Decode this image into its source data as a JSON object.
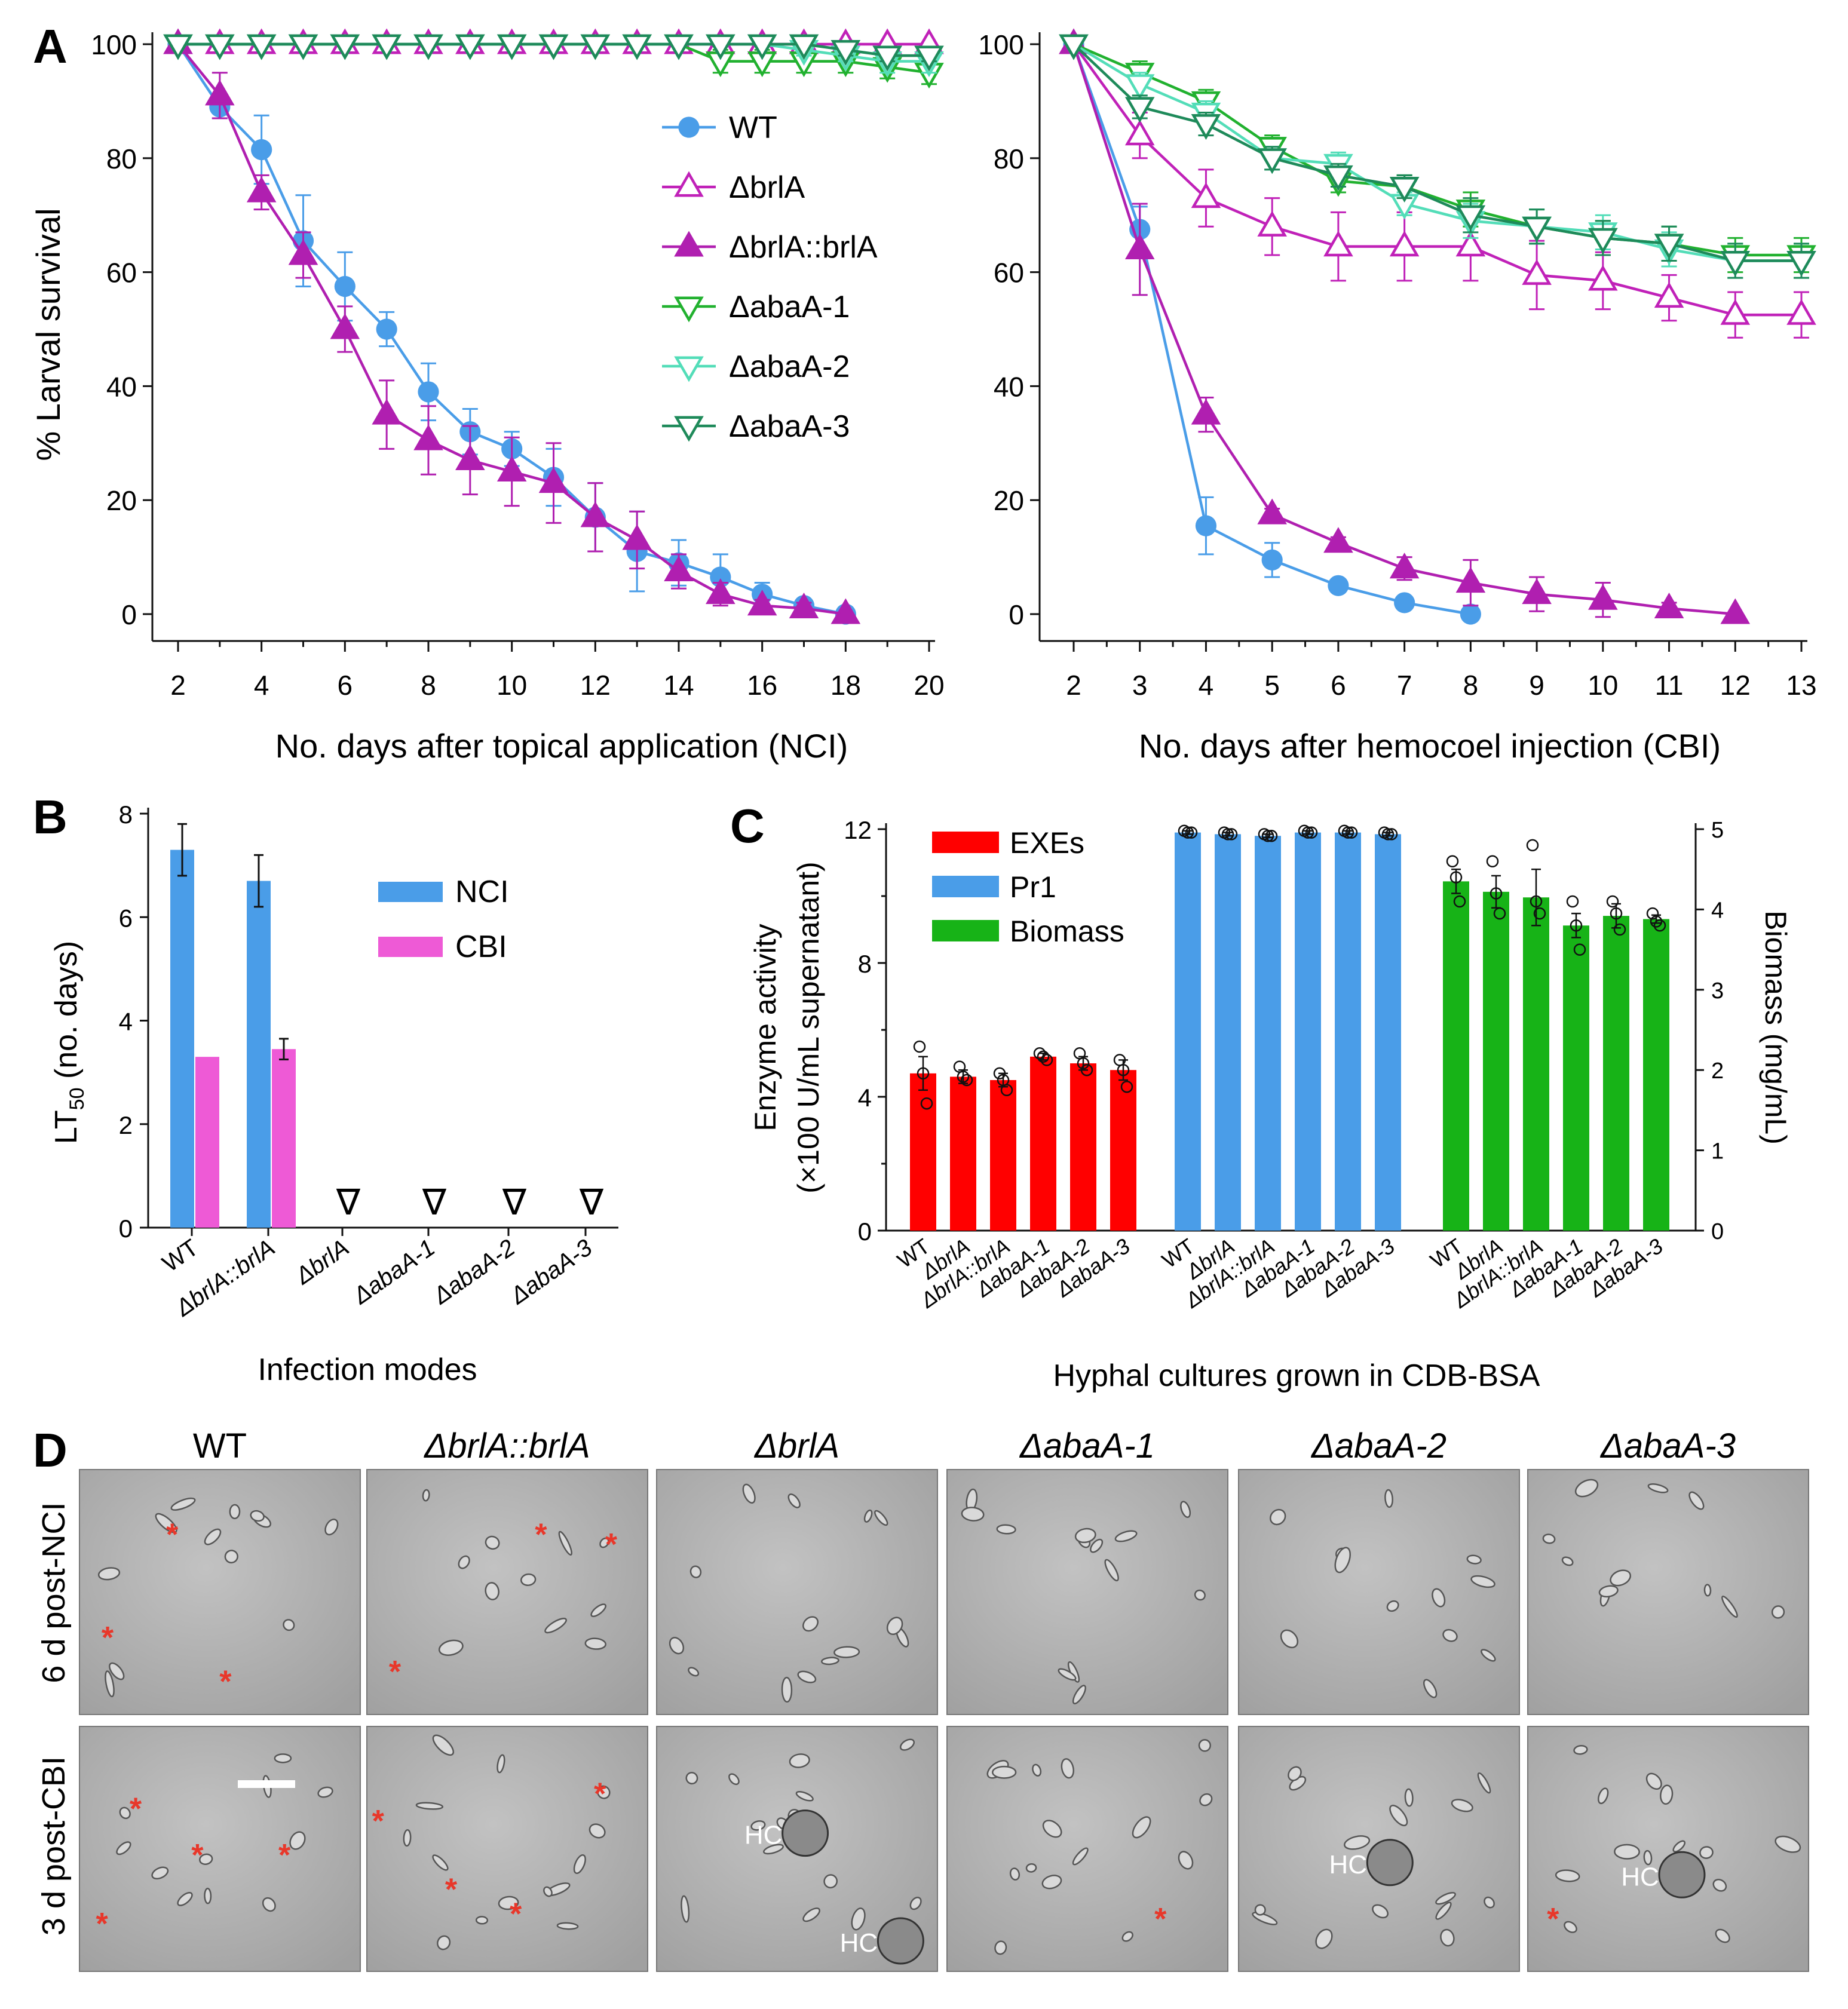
{
  "panels": {
    "A": "A",
    "B": "B",
    "C": "C",
    "D": "D"
  },
  "colors": {
    "wt": "#4a9de8",
    "brlA": "#c021b8",
    "comp": "#b01fb0",
    "abaA1": "#21b12f",
    "abaA2": "#53ddb8",
    "abaA3": "#1e8a5a",
    "exes": "#ff0000",
    "pr1": "#4a9de8",
    "biomass": "#17b317",
    "nci": "#4a9de8",
    "cbi": "#ee5ad6",
    "asterisk": "#e8372a"
  },
  "chart_data": [
    {
      "id": "A-left",
      "type": "line",
      "title": "",
      "xlabel": "No. days after topical application (NCI)",
      "ylabel": "% Larval survival",
      "xlim": [
        2,
        20
      ],
      "ylim": [
        0,
        100
      ],
      "xticks": [
        2,
        4,
        6,
        8,
        10,
        12,
        14,
        16,
        18,
        20
      ],
      "yticks": [
        0,
        20,
        40,
        60,
        80,
        100
      ],
      "legend": [
        "WT",
        "ΔbrlA",
        "ΔbrlA::brlA",
        "ΔabaA-1",
        "ΔabaA-2",
        "ΔabaA-3"
      ],
      "series": [
        {
          "name": "WT",
          "key": "wt",
          "marker": "circle",
          "x": [
            2,
            3,
            4,
            5,
            6,
            7,
            8,
            9,
            10,
            11,
            12,
            13,
            14,
            15,
            16,
            17,
            18
          ],
          "values": [
            100,
            89,
            81.5,
            65.5,
            57.5,
            50,
            39,
            32,
            29,
            24,
            17,
            11,
            9,
            6.5,
            3.5,
            1.5,
            0
          ],
          "err": [
            0,
            2,
            6,
            8,
            6,
            3,
            5,
            4,
            3,
            5,
            6,
            7,
            4,
            4,
            2,
            1,
            0
          ]
        },
        {
          "name": "ΔbrlA",
          "key": "brlA",
          "marker": "tri-up-open",
          "x": [
            2,
            3,
            4,
            5,
            6,
            7,
            8,
            9,
            10,
            11,
            12,
            13,
            14,
            15,
            16,
            17,
            18,
            19,
            20
          ],
          "values": [
            100,
            100,
            100,
            100,
            100,
            100,
            100,
            100,
            100,
            100,
            100,
            100,
            100,
            100,
            100,
            100,
            100,
            100,
            100
          ],
          "err": [
            0,
            0,
            0,
            0,
            0,
            0,
            0,
            0,
            0,
            0,
            0,
            0,
            0,
            0,
            0,
            0,
            0,
            0,
            0
          ]
        },
        {
          "name": "ΔbrlA::brlA",
          "key": "comp",
          "marker": "tri-up-filled",
          "x": [
            2,
            3,
            4,
            5,
            6,
            7,
            8,
            9,
            10,
            11,
            12,
            13,
            14,
            15,
            16,
            17,
            18
          ],
          "values": [
            100,
            91,
            74,
            63,
            50,
            35,
            30.5,
            27,
            25,
            23,
            17,
            13,
            7.5,
            3.5,
            1.5,
            1,
            0
          ],
          "err": [
            0,
            4,
            3,
            4,
            4,
            6,
            6,
            6,
            6,
            7,
            6,
            5,
            3,
            2,
            1,
            1,
            0
          ]
        },
        {
          "name": "ΔabaA-1",
          "key": "abaA1",
          "marker": "tri-down-open",
          "x": [
            2,
            3,
            4,
            5,
            6,
            7,
            8,
            9,
            10,
            11,
            12,
            13,
            14,
            15,
            16,
            17,
            18,
            19,
            20
          ],
          "values": [
            100,
            100,
            100,
            100,
            100,
            100,
            100,
            100,
            100,
            100,
            100,
            100,
            100,
            97,
            97,
            97,
            97,
            96,
            95
          ],
          "err": [
            0,
            0,
            0,
            0,
            0,
            0,
            0,
            0,
            0,
            0,
            0,
            0,
            0,
            2,
            2,
            2,
            2,
            2,
            2
          ]
        },
        {
          "name": "ΔabaA-2",
          "key": "abaA2",
          "marker": "tri-down-open",
          "x": [
            2,
            3,
            4,
            5,
            6,
            7,
            8,
            9,
            10,
            11,
            12,
            13,
            14,
            15,
            16,
            17,
            18,
            19,
            20
          ],
          "values": [
            100,
            100,
            100,
            100,
            100,
            100,
            100,
            100,
            100,
            100,
            100,
            100,
            100,
            100,
            100,
            99,
            98,
            97,
            97
          ],
          "err": [
            0,
            0,
            0,
            0,
            0,
            0,
            0,
            0,
            0,
            0,
            0,
            0,
            0,
            0,
            0,
            1,
            1,
            2,
            2
          ]
        },
        {
          "name": "ΔabaA-3",
          "key": "abaA3",
          "marker": "tri-down-open",
          "x": [
            2,
            3,
            4,
            5,
            6,
            7,
            8,
            9,
            10,
            11,
            12,
            13,
            14,
            15,
            16,
            17,
            18,
            19,
            20
          ],
          "values": [
            100,
            100,
            100,
            100,
            100,
            100,
            100,
            100,
            100,
            100,
            100,
            100,
            100,
            100,
            100,
            100,
            99,
            98,
            98
          ],
          "err": [
            0,
            0,
            0,
            0,
            0,
            0,
            0,
            0,
            0,
            0,
            0,
            0,
            0,
            0,
            0,
            0,
            1,
            1,
            1
          ]
        }
      ]
    },
    {
      "id": "A-right",
      "type": "line",
      "title": "",
      "xlabel": "No. days after hemocoel injection (CBI)",
      "ylabel": "",
      "xlim": [
        2,
        13
      ],
      "ylim": [
        0,
        100
      ],
      "xticks": [
        2,
        3,
        4,
        5,
        6,
        7,
        8,
        9,
        10,
        11,
        12,
        13
      ],
      "yticks": [
        0,
        20,
        40,
        60,
        80,
        100
      ],
      "series": [
        {
          "name": "WT",
          "key": "wt",
          "marker": "circle",
          "x": [
            2,
            3,
            4,
            5,
            6,
            7,
            8
          ],
          "values": [
            100,
            67.5,
            15.5,
            9.5,
            5,
            2,
            0
          ],
          "err": [
            0,
            4,
            5,
            3,
            1,
            1,
            0
          ]
        },
        {
          "name": "ΔbrlA",
          "key": "brlA",
          "marker": "tri-up-open",
          "x": [
            2,
            3,
            4,
            5,
            6,
            7,
            8,
            9,
            10,
            11,
            12,
            13
          ],
          "values": [
            100,
            84,
            73,
            68,
            64.5,
            64.5,
            64.5,
            59.5,
            58.5,
            55.5,
            52.5,
            52.5
          ],
          "err": [
            0,
            4,
            5,
            5,
            6,
            6,
            6,
            6,
            5,
            4,
            4,
            4
          ]
        },
        {
          "name": "ΔbrlA::brlA",
          "key": "comp",
          "marker": "tri-up-filled",
          "x": [
            2,
            3,
            4,
            5,
            6,
            7,
            8,
            9,
            10,
            11,
            12
          ],
          "values": [
            100,
            64,
            35,
            17.5,
            12.5,
            8,
            5.5,
            3.5,
            2.5,
            1,
            0
          ],
          "err": [
            0,
            8,
            3,
            1,
            1,
            2,
            4,
            3,
            3,
            1,
            0
          ]
        },
        {
          "name": "ΔabaA-1",
          "key": "abaA1",
          "marker": "tri-down-open",
          "x": [
            2,
            3,
            4,
            5,
            6,
            7,
            8,
            9,
            10,
            11,
            12,
            13
          ],
          "values": [
            100,
            95,
            90,
            82,
            76,
            75,
            71,
            68,
            66,
            65,
            63,
            63
          ],
          "err": [
            0,
            2,
            2,
            2,
            2,
            2,
            3,
            3,
            3,
            3,
            3,
            3
          ]
        },
        {
          "name": "ΔabaA-2",
          "key": "abaA2",
          "marker": "tri-down-open",
          "x": [
            2,
            3,
            4,
            5,
            6,
            7,
            8,
            9,
            10,
            11,
            12,
            13
          ],
          "values": [
            100,
            93,
            88,
            80,
            79,
            72,
            69,
            68,
            67,
            64,
            62,
            62
          ],
          "err": [
            0,
            2,
            2,
            2,
            2,
            2,
            3,
            3,
            3,
            3,
            3,
            3
          ]
        },
        {
          "name": "ΔabaA-3",
          "key": "abaA3",
          "marker": "tri-down-open",
          "x": [
            2,
            3,
            4,
            5,
            6,
            7,
            8,
            9,
            10,
            11,
            12,
            13
          ],
          "values": [
            100,
            89,
            86,
            80,
            77,
            75,
            70,
            68,
            66,
            65,
            62,
            62
          ],
          "err": [
            0,
            2,
            2,
            2,
            2,
            2,
            3,
            3,
            3,
            3,
            3,
            3
          ]
        }
      ]
    },
    {
      "id": "B",
      "type": "bar",
      "xlabel": "Infection modes",
      "ylabel_main": "LT",
      "ylabel_sub": "50",
      "ylabel_rest": " (no. days)",
      "ylim": [
        0,
        8
      ],
      "yticks": [
        0,
        2,
        4,
        6,
        8
      ],
      "categories": [
        "WT",
        "ΔbrlA::brlA",
        "ΔbrlA",
        "ΔabaA-1",
        "ΔabaA-2",
        "ΔabaA-3"
      ],
      "series": [
        {
          "name": "NCI",
          "key": "nci",
          "values": [
            7.3,
            6.7,
            null,
            null,
            null,
            null
          ],
          "err": [
            0.5,
            0.5,
            0,
            0,
            0,
            0
          ]
        },
        {
          "name": "CBI",
          "key": "cbi",
          "values": [
            3.3,
            3.45,
            null,
            null,
            null,
            null
          ],
          "err": [
            0,
            0.2,
            0,
            0,
            0,
            0
          ]
        }
      ],
      "not_reached_marker": "∇"
    },
    {
      "id": "C",
      "type": "bar",
      "xlabel": "Hyphal cultures grown in CDB-BSA",
      "ylabel_line1": "Enzyme activity",
      "ylabel_line2": "(×100 U/mL supernatant)",
      "ylabel_right": "Biomass (mg/mL)",
      "ylim": [
        0,
        12
      ],
      "ylim_right": [
        0,
        5
      ],
      "yticks": [
        0,
        4,
        8,
        12
      ],
      "yticks_right": [
        0,
        1,
        2,
        3,
        4,
        5
      ],
      "categories": [
        "WT",
        "ΔbrlA",
        "ΔbrlA::brlA",
        "ΔabaA-1",
        "ΔabaA-2",
        "ΔabaA-3"
      ],
      "series": [
        {
          "name": "EXEs",
          "key": "exes",
          "axis": "left",
          "values": [
            4.7,
            4.6,
            4.5,
            5.2,
            5.0,
            4.8
          ],
          "err": [
            0.5,
            0.2,
            0.2,
            0.1,
            0.2,
            0.3
          ],
          "points": [
            [
              5.5,
              4.7,
              3.8
            ],
            [
              4.9,
              4.6,
              4.5
            ],
            [
              4.7,
              4.5,
              4.2
            ],
            [
              5.3,
              5.2,
              5.1
            ],
            [
              5.3,
              5.0,
              4.8
            ],
            [
              5.1,
              4.8,
              4.3
            ]
          ]
        },
        {
          "name": "Pr1",
          "key": "pr1",
          "axis": "left",
          "values": [
            11.9,
            11.85,
            11.8,
            11.9,
            11.9,
            11.85
          ],
          "err": [
            0.05,
            0.05,
            0.05,
            0.05,
            0.05,
            0.05
          ],
          "points": [
            [
              11.95,
              11.9,
              11.9
            ],
            [
              11.9,
              11.85,
              11.85
            ],
            [
              11.85,
              11.8,
              11.8
            ],
            [
              11.95,
              11.9,
              11.9
            ],
            [
              11.95,
              11.9,
              11.9
            ],
            [
              11.9,
              11.85,
              11.85
            ]
          ]
        },
        {
          "name": "Biomass",
          "key": "biomass",
          "axis": "right",
          "values": [
            4.35,
            4.22,
            4.15,
            3.8,
            3.92,
            3.88
          ],
          "err": [
            0.15,
            0.2,
            0.35,
            0.15,
            0.15,
            0.05
          ],
          "points": [
            [
              4.6,
              4.4,
              4.1
            ],
            [
              4.6,
              4.2,
              3.95
            ],
            [
              4.8,
              4.1,
              3.95
            ],
            [
              4.1,
              3.8,
              3.5
            ],
            [
              4.1,
              3.95,
              3.75
            ],
            [
              3.95,
              3.85,
              3.8
            ]
          ]
        }
      ]
    }
  ],
  "panel_D": {
    "columns": [
      "WT",
      "ΔbrlA::brlA",
      "ΔbrlA",
      "ΔabaA-1",
      "ΔabaA-2",
      "ΔabaA-3"
    ],
    "rows": [
      "6 d post-NCI",
      "3 d post-CBI"
    ],
    "hc_label": "HC",
    "asterisk": "*"
  }
}
